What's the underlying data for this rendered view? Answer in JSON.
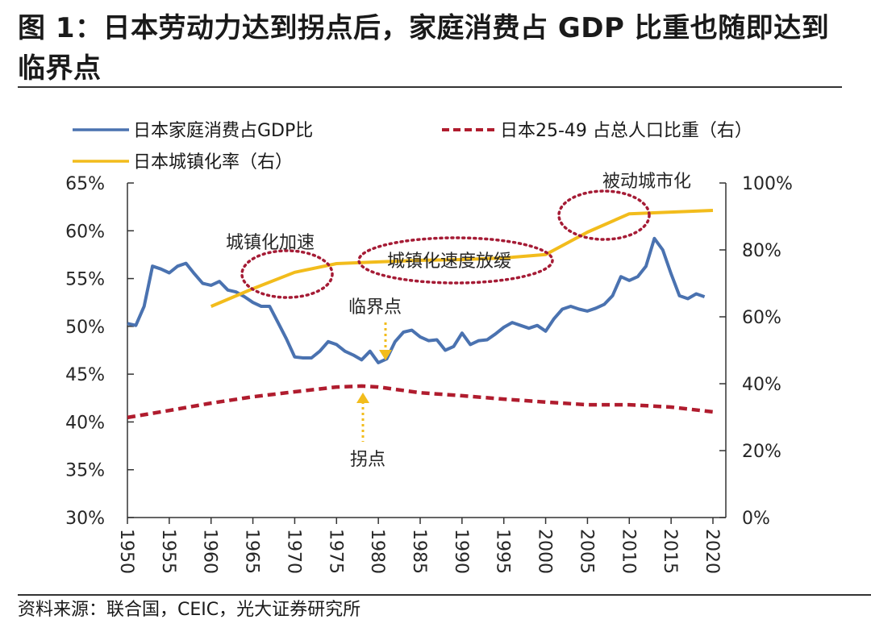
{
  "header": {
    "title_line1": "图 1：日本劳动力达到拐点后，家庭消费占 GDP 比重也随即达到",
    "title_line2": "临界点"
  },
  "footer": {
    "source": "资料来源：联合国，CEIC，光大证券研究所"
  },
  "colors": {
    "consumption": "#4a72b0",
    "working_age": "#b01c2e",
    "urbanization": "#f2bc1c",
    "ellipse": "#a51b35",
    "arrow": "#f2bc1c"
  },
  "chart_data": {
    "type": "line",
    "title": "图 1：日本劳动力达到拐点后，家庭消费占 GDP 比重也随即达到临界点",
    "xlabel": "",
    "ylabel_left": "",
    "ylabel_right": "",
    "xlim": [
      1950,
      2020
    ],
    "ylim_left": [
      30,
      65
    ],
    "ylim_right": [
      0,
      100
    ],
    "x_ticks": [
      "1950",
      "1955",
      "1960",
      "1965",
      "1970",
      "1975",
      "1980",
      "1985",
      "1990",
      "1995",
      "2000",
      "2005",
      "2010",
      "2015",
      "2020"
    ],
    "y_ticks_left": [
      "30%",
      "35%",
      "40%",
      "45%",
      "50%",
      "55%",
      "60%",
      "65%"
    ],
    "y_ticks_right": [
      "0%",
      "20%",
      "40%",
      "60%",
      "80%",
      "100%"
    ],
    "grid": false,
    "legend": {
      "placement": "top",
      "entries": [
        "日本家庭消费占GDP比",
        "日本25-49 占总人口比重（右）",
        "日本城镇化率（右）"
      ]
    },
    "series": [
      {
        "name": "日本家庭消费占GDP比",
        "axis": "left",
        "style": "solid",
        "x": [
          1950,
          1951,
          1952,
          1953,
          1954,
          1955,
          1956,
          1957,
          1958,
          1959,
          1960,
          1961,
          1962,
          1963,
          1964,
          1965,
          1966,
          1967,
          1968,
          1969,
          1970,
          1971,
          1972,
          1973,
          1974,
          1975,
          1976,
          1977,
          1978,
          1979,
          1980,
          1981,
          1982,
          1983,
          1984,
          1985,
          1986,
          1987,
          1988,
          1989,
          1990,
          1991,
          1992,
          1993,
          1994,
          1995,
          1996,
          1997,
          1998,
          1999,
          2000,
          2001,
          2002,
          2003,
          2004,
          2005,
          2006,
          2007,
          2008,
          2009,
          2010,
          2011,
          2012,
          2013,
          2014,
          2015,
          2016,
          2017,
          2018,
          2019
        ],
        "values": [
          50.3,
          50.1,
          52.1,
          56.3,
          56.0,
          55.6,
          56.3,
          56.6,
          55.5,
          54.5,
          54.3,
          54.7,
          53.8,
          53.6,
          53.1,
          52.5,
          52.1,
          52.1,
          50.4,
          48.7,
          46.8,
          46.7,
          46.7,
          47.4,
          48.4,
          48.1,
          47.4,
          47.0,
          46.5,
          47.4,
          46.2,
          46.6,
          48.4,
          49.4,
          49.6,
          48.9,
          48.5,
          48.6,
          47.5,
          47.9,
          49.3,
          48.1,
          48.5,
          48.6,
          49.2,
          49.9,
          50.4,
          50.1,
          49.8,
          50.1,
          49.5,
          50.8,
          51.8,
          52.1,
          51.8,
          51.6,
          51.9,
          52.3,
          53.2,
          55.2,
          54.8,
          55.2,
          56.3,
          59.2,
          58.0,
          55.5,
          53.2,
          52.9,
          53.4,
          53.1
        ]
      },
      {
        "name": "日本25-49 占总人口比重（右）",
        "axis": "right",
        "style": "dashed",
        "x": [
          1950,
          1955,
          1960,
          1965,
          1970,
          1975,
          1978,
          1980,
          1985,
          1990,
          1995,
          2000,
          2005,
          2010,
          2015,
          2020
        ],
        "values": [
          29.9,
          32.0,
          34.2,
          36.1,
          37.6,
          39.0,
          39.3,
          39.0,
          37.3,
          36.4,
          35.4,
          34.5,
          33.7,
          33.7,
          33.0,
          31.6
        ]
      },
      {
        "name": "日本城镇化率（右）",
        "axis": "right",
        "style": "solid",
        "x": [
          1960,
          1965,
          1970,
          1975,
          1980,
          1985,
          1990,
          1995,
          2000,
          2005,
          2010,
          2015,
          2020
        ],
        "values": [
          63.1,
          68.4,
          73.3,
          75.9,
          76.4,
          76.9,
          77.1,
          77.6,
          78.6,
          85.3,
          90.8,
          91.3,
          91.8
        ]
      }
    ],
    "annotations": [
      {
        "id": "accel",
        "text": "城镇化加速",
        "type": "ellipse",
        "x_range": [
          1963,
          1975
        ]
      },
      {
        "id": "slow",
        "text": "城镇化速度放缓",
        "type": "ellipse",
        "x_range": [
          1978,
          2001
        ]
      },
      {
        "id": "passive",
        "text": "被动城市化",
        "type": "ellipse",
        "x_range": [
          2001,
          2011
        ]
      },
      {
        "id": "critical",
        "text": "临界点",
        "type": "arrow-down",
        "x": 1980.5
      },
      {
        "id": "turning",
        "text": "拐点",
        "type": "arrow-up",
        "x": 1977.5
      }
    ]
  }
}
